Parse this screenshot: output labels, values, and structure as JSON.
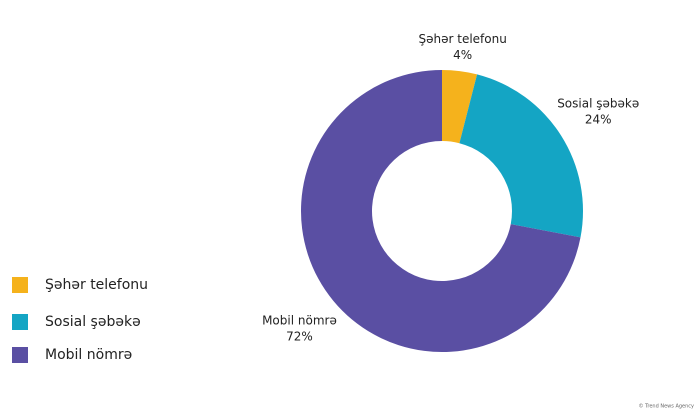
{
  "chart_data": {
    "type": "donut",
    "categories": [
      "Şəhər telefonu",
      "Sosial şəbəkə",
      "Mobil nömrə"
    ],
    "values": [
      4,
      24,
      72
    ],
    "value_labels": [
      "4%",
      "24%",
      "72%"
    ],
    "colors": [
      "#f5b21c",
      "#14a5c4",
      "#5a4fa3"
    ],
    "legend": "left"
  },
  "footer": "© Trend News Agency"
}
